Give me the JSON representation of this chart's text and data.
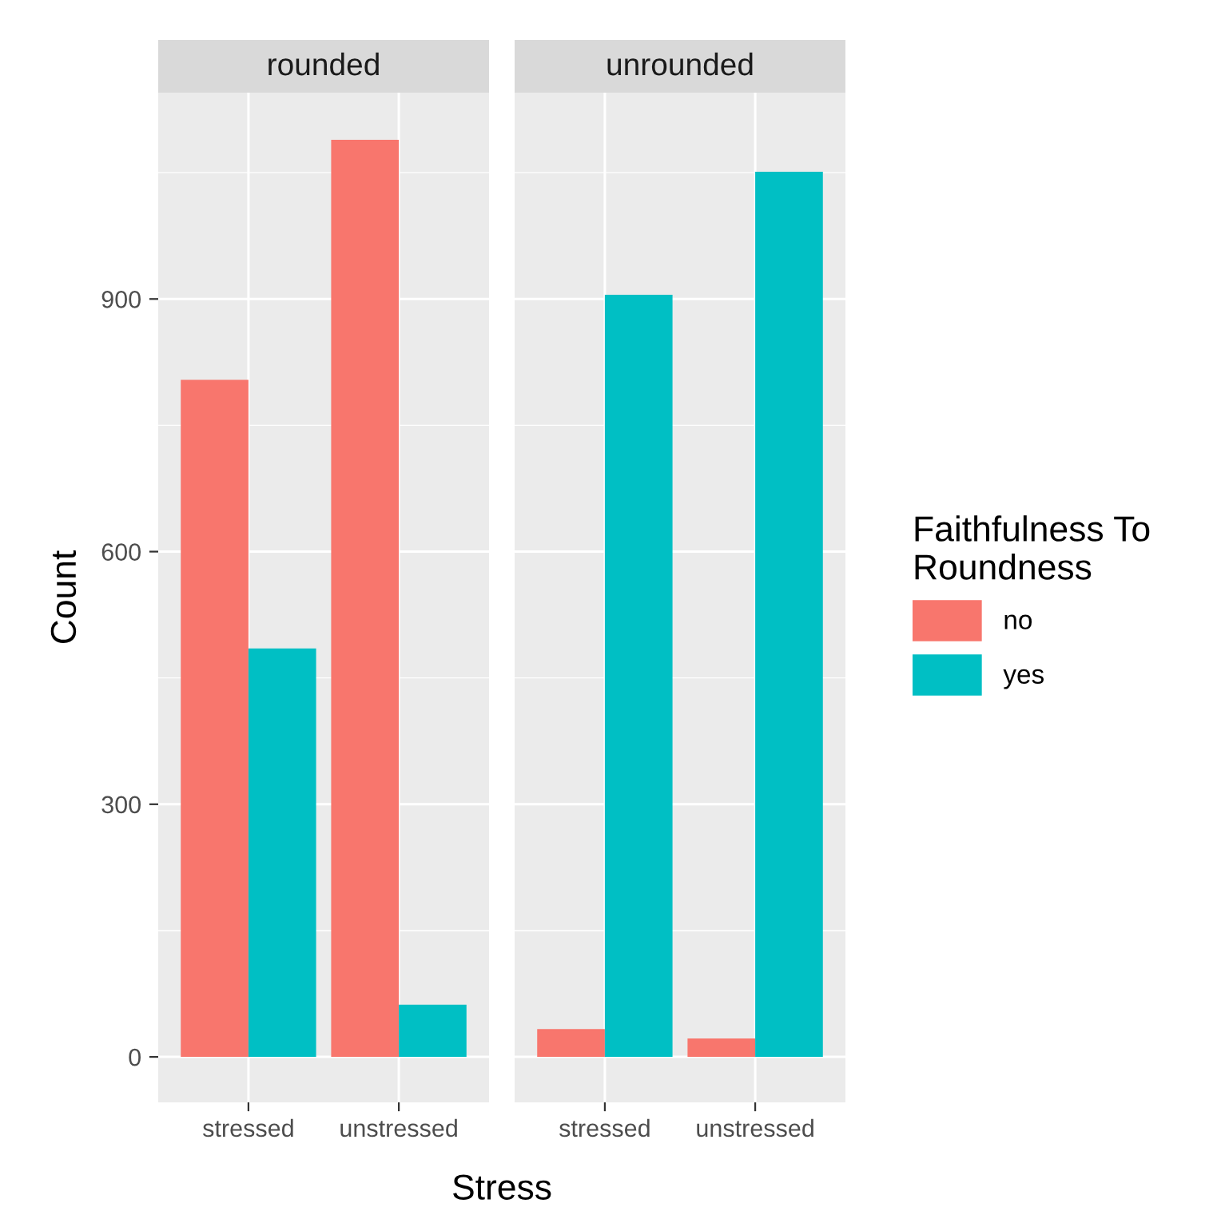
{
  "chart_data": [
    {
      "type": "bar",
      "title": "rounded",
      "xlabel": "Stress",
      "ylabel": "Count",
      "categories": [
        "stressed",
        "unstressed"
      ],
      "series": [
        {
          "name": "no",
          "color": "#f8766d",
          "values": [
            804,
            1089
          ]
        },
        {
          "name": "yes",
          "color": "#00bfc4",
          "values": [
            485,
            62
          ]
        }
      ],
      "ylim": [
        -54,
        1145
      ],
      "yticks": [
        0,
        300,
        600,
        900
      ],
      "grid": true,
      "legend": "right",
      "legend_title": "Faithfulness To\nRoundness"
    },
    {
      "type": "bar",
      "title": "unrounded",
      "categories": [
        "stressed",
        "unstressed"
      ],
      "series": [
        {
          "color": "#f8766d",
          "values": [
            33,
            22
          ]
        },
        {
          "color": "#00bfc4",
          "values": [
            905,
            1051
          ]
        }
      ],
      "ylim": [
        -54,
        1145
      ],
      "yticks": [
        0,
        300,
        600,
        900
      ],
      "grid": true,
      "tick_labels": "x"
    }
  ]
}
